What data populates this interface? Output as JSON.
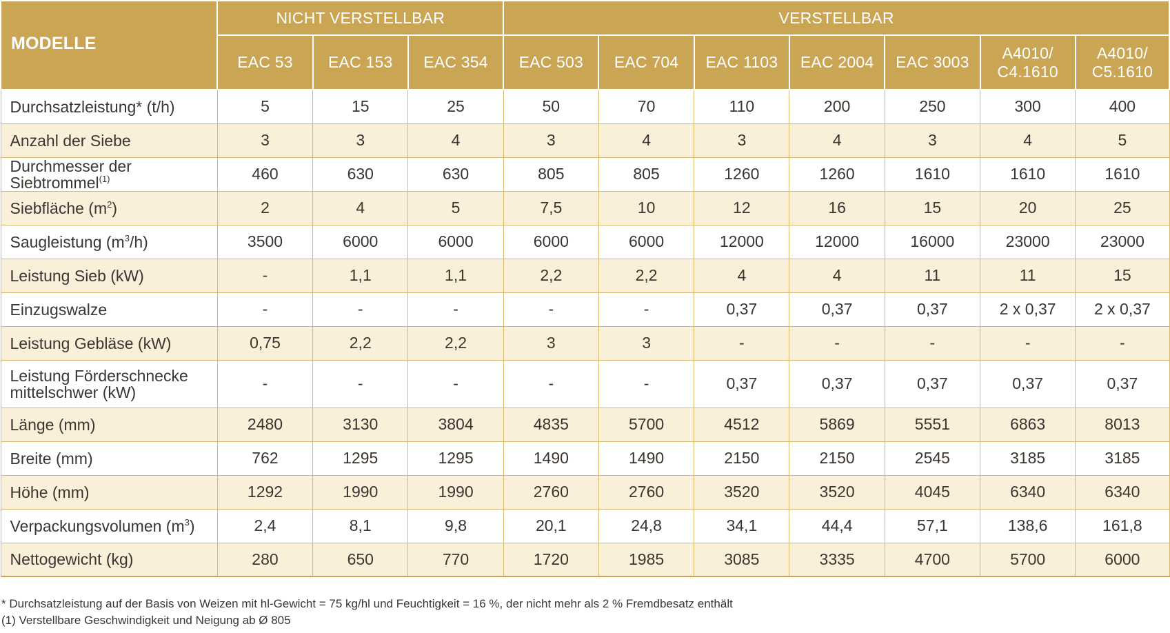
{
  "header": {
    "corner": "MODELLE",
    "groups": [
      "NICHT VERSTELLBAR",
      "VERSTELLBAR"
    ],
    "models": [
      [
        "EAC 53"
      ],
      [
        "EAC 153"
      ],
      [
        "EAC 354"
      ],
      [
        "EAC 503"
      ],
      [
        "EAC 704"
      ],
      [
        "EAC 1103"
      ],
      [
        "EAC 2004"
      ],
      [
        "EAC 3003"
      ],
      [
        "A4010/",
        "C4.1610"
      ],
      [
        "A4010/",
        "C5.1610"
      ]
    ]
  },
  "rows": [
    {
      "label": "Durchsatzleistung* (t/h)",
      "values": [
        "5",
        "15",
        "25",
        "50",
        "70",
        "110",
        "200",
        "250",
        "300",
        "400"
      ]
    },
    {
      "label": "Anzahl der Siebe",
      "values": [
        "3",
        "3",
        "4",
        "3",
        "4",
        "3",
        "4",
        "3",
        "4",
        "5"
      ]
    },
    {
      "label": "Durchmesser der Siebtrommel",
      "sup": "(1)",
      "values": [
        "460",
        "630",
        "630",
        "805",
        "805",
        "1260",
        "1260",
        "1610",
        "1610",
        "1610"
      ]
    },
    {
      "label": "Siebfläche (m",
      "sup": "2",
      "suffix": ")",
      "values": [
        "2",
        "4",
        "5",
        "7,5",
        "10",
        "12",
        "16",
        "15",
        "20",
        "25"
      ]
    },
    {
      "label": "Saugleistung (m",
      "sup": "3",
      "suffix": "/h)",
      "values": [
        "3500",
        "6000",
        "6000",
        "6000",
        "6000",
        "12000",
        "12000",
        "16000",
        "23000",
        "23000"
      ]
    },
    {
      "label": "Leistung Sieb (kW)",
      "values": [
        "-",
        "1,1",
        "1,1",
        "2,2",
        "2,2",
        "4",
        "4",
        "11",
        "11",
        "15"
      ]
    },
    {
      "label": "Einzugswalze",
      "values": [
        "-",
        "-",
        "-",
        "-",
        "-",
        "0,37",
        "0,37",
        "0,37",
        "2 x 0,37",
        "2 x 0,37"
      ]
    },
    {
      "label": "Leistung Gebläse (kW)",
      "values": [
        "0,75",
        "2,2",
        "2,2",
        "3",
        "3",
        "-",
        "-",
        "-",
        "-",
        "-"
      ]
    },
    {
      "label": "Leistung Förderschnecke mittelschwer (kW)",
      "values": [
        "-",
        "-",
        "-",
        "-",
        "-",
        "0,37",
        "0,37",
        "0,37",
        "0,37",
        "0,37"
      ],
      "tall": true
    },
    {
      "label": "Länge (mm)",
      "values": [
        "2480",
        "3130",
        "3804",
        "4835",
        "5700",
        "4512",
        "5869",
        "5551",
        "6863",
        "8013"
      ]
    },
    {
      "label": "Breite (mm)",
      "values": [
        "762",
        "1295",
        "1295",
        "1490",
        "1490",
        "2150",
        "2150",
        "2545",
        "3185",
        "3185"
      ]
    },
    {
      "label": "Höhe (mm)",
      "values": [
        "1292",
        "1990",
        "1990",
        "2760",
        "2760",
        "3520",
        "3520",
        "4045",
        "6340",
        "6340"
      ]
    },
    {
      "label": "Verpackungsvolumen (m",
      "sup": "3",
      "suffix": ")",
      "values": [
        "2,4",
        "8,1",
        "9,8",
        "20,1",
        "24,8",
        "34,1",
        "44,4",
        "57,1",
        "138,6",
        "161,8"
      ]
    },
    {
      "label": "Nettogewicht (kg)",
      "values": [
        "280",
        "650",
        "770",
        "1720",
        "1985",
        "3085",
        "3335",
        "4700",
        "5700",
        "6000"
      ]
    }
  ],
  "footnotes": [
    "* Durchsatzleistung auf der Basis von Weizen mit hl-Gewicht = 75 kg/hl und Feuchtigkeit = 16 %, der nicht mehr als 2 % Fremdbesatz enthält",
    "(1) Verstellbare Geschwindigkeit und Neigung ab Ø 805"
  ]
}
